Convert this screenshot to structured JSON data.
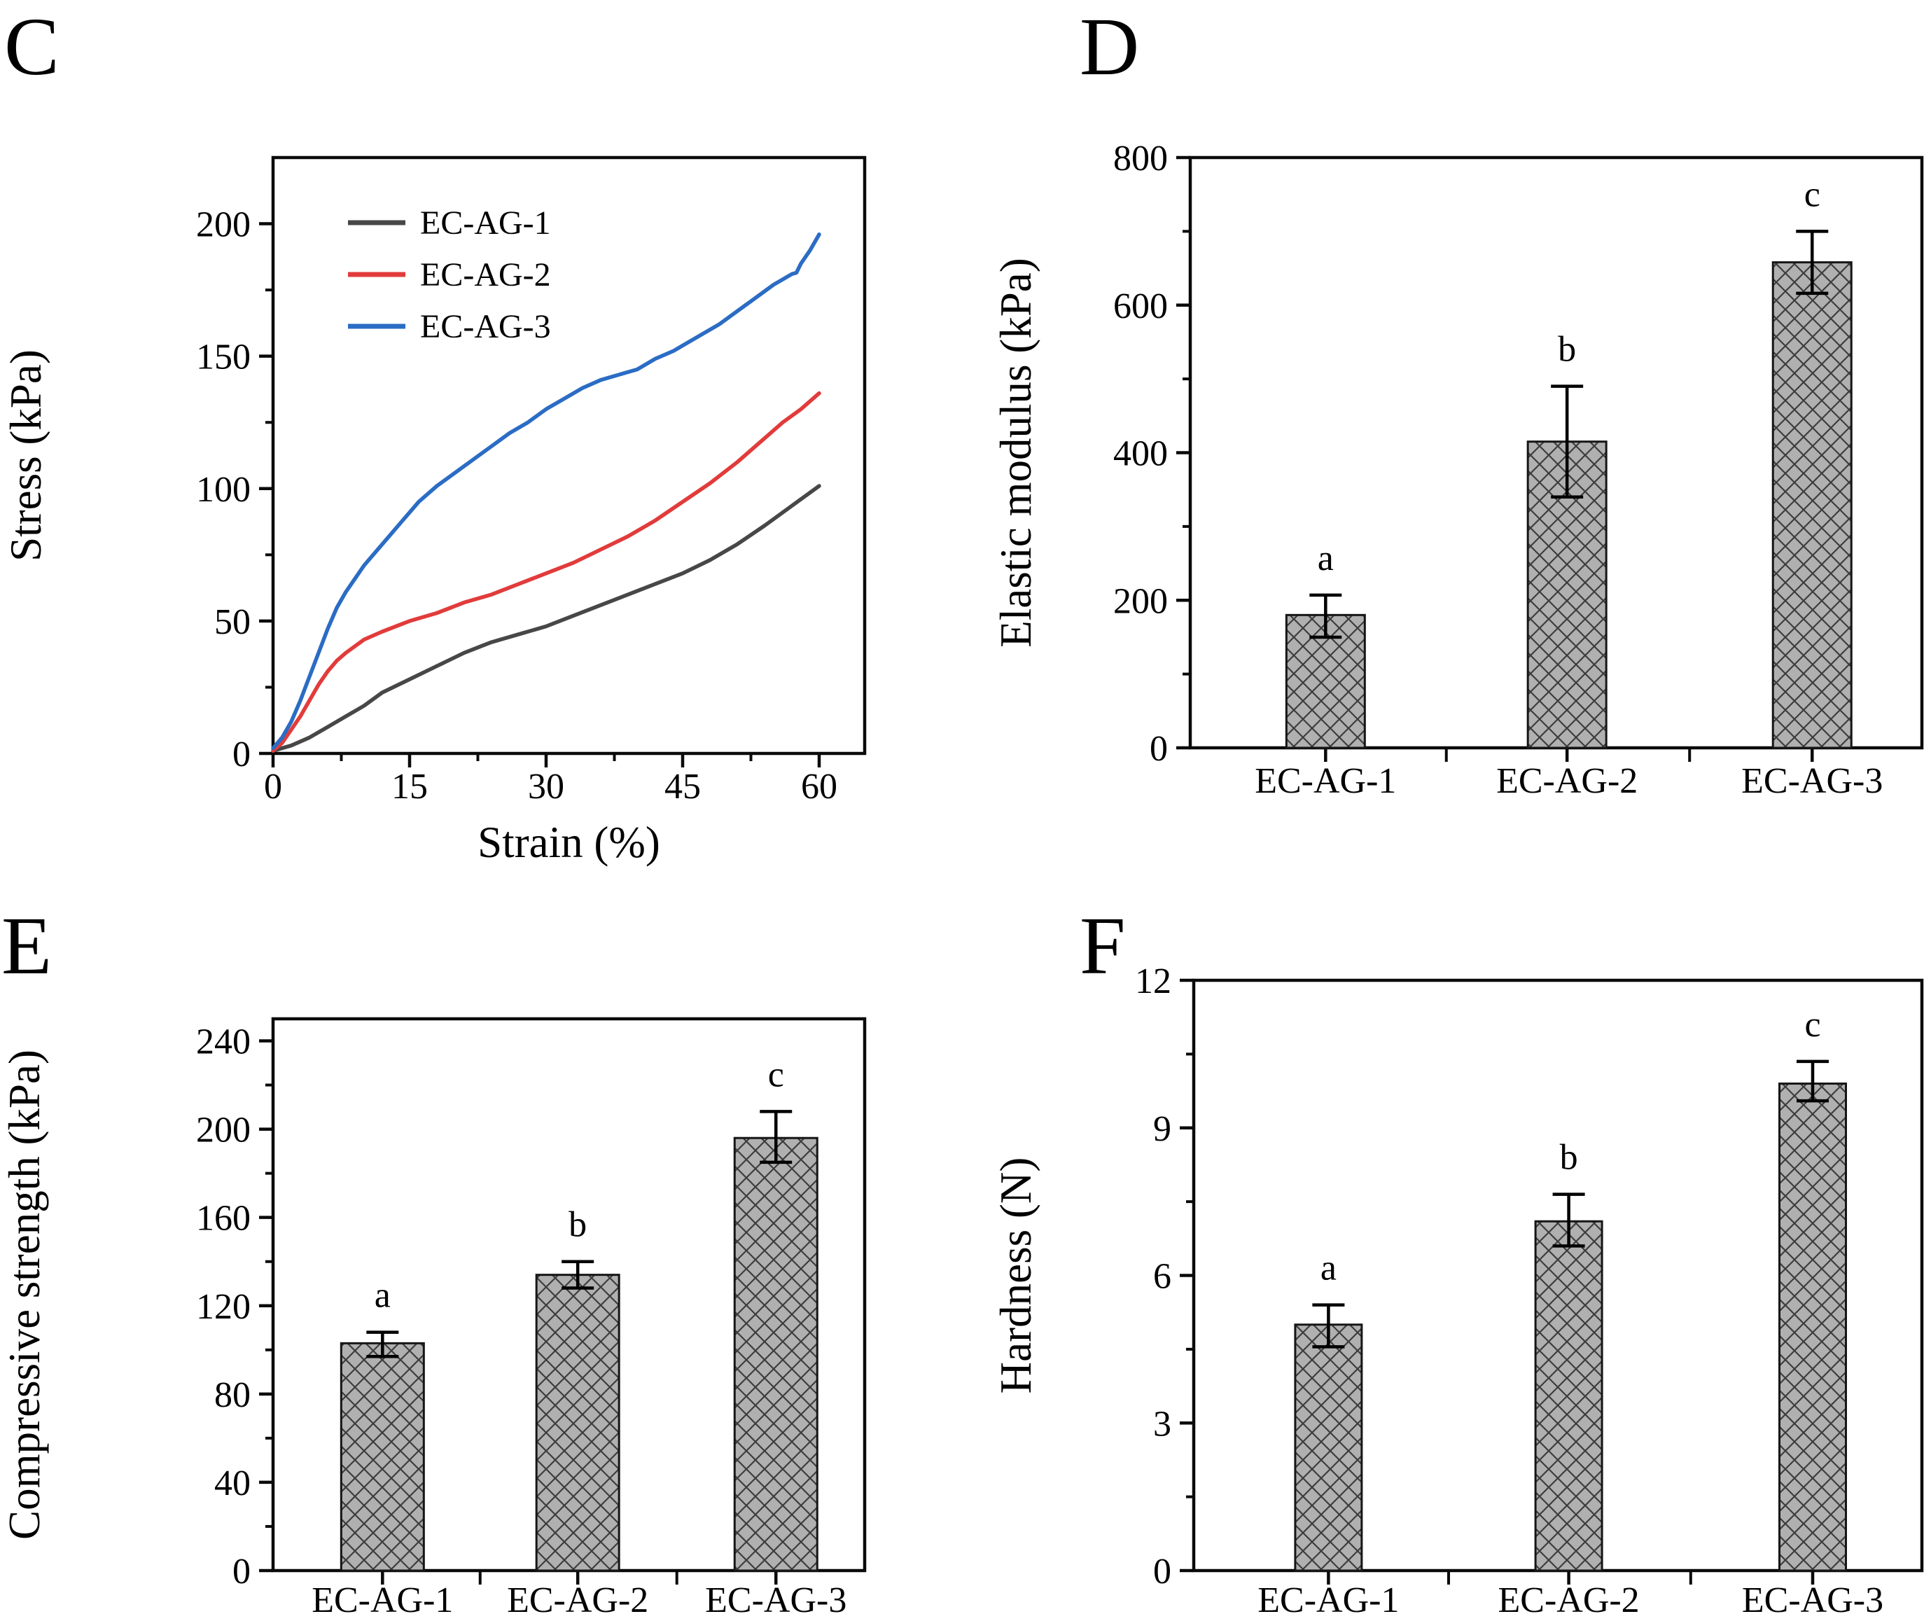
{
  "figure": {
    "background": "#ffffff",
    "text_color": "#000000",
    "axis_color": "#0a0a0a",
    "bar_fill": "#b0b0b0",
    "bar_hatch_color": "#3d3d3d",
    "panel_letters": [
      "C",
      "D",
      "E",
      "F"
    ]
  },
  "chart_data": [
    {
      "id": "C",
      "panel_letter": "C",
      "type": "line",
      "xlabel": "Strain (%)",
      "ylabel": "Stress (kPa)",
      "xlim": [
        0,
        65
      ],
      "ylim": [
        0,
        225
      ],
      "x_major_ticks": [
        0,
        15,
        30,
        45,
        60
      ],
      "x_minor_ticks": [
        7.5,
        22.5,
        37.5,
        52.5
      ],
      "y_major_ticks": [
        0,
        50,
        100,
        150,
        200
      ],
      "y_minor_ticks": [
        25,
        75,
        125,
        175
      ],
      "grid": false,
      "legend_position": "top-left",
      "series": [
        {
          "name": "EC-AG-1",
          "color": "#474747",
          "points": [
            [
              0,
              1
            ],
            [
              2,
              3
            ],
            [
              4,
              6
            ],
            [
              6,
              10
            ],
            [
              8,
              14
            ],
            [
              10,
              18
            ],
            [
              12,
              23
            ],
            [
              15,
              28
            ],
            [
              18,
              33
            ],
            [
              21,
              38
            ],
            [
              24,
              42
            ],
            [
              27,
              45
            ],
            [
              30,
              48
            ],
            [
              33,
              52
            ],
            [
              36,
              56
            ],
            [
              39,
              60
            ],
            [
              42,
              64
            ],
            [
              45,
              68
            ],
            [
              48,
              73
            ],
            [
              51,
              79
            ],
            [
              54,
              86
            ],
            [
              56,
              91
            ],
            [
              58,
              96
            ],
            [
              60,
              101
            ]
          ]
        },
        {
          "name": "EC-AG-2",
          "color": "#e23b3b",
          "points": [
            [
              0,
              1
            ],
            [
              1,
              4
            ],
            [
              2,
              9
            ],
            [
              3,
              14
            ],
            [
              4,
              20
            ],
            [
              5,
              26
            ],
            [
              6,
              31
            ],
            [
              7,
              35
            ],
            [
              8,
              38
            ],
            [
              10,
              43
            ],
            [
              12,
              46
            ],
            [
              15,
              50
            ],
            [
              18,
              53
            ],
            [
              21,
              57
            ],
            [
              24,
              60
            ],
            [
              27,
              64
            ],
            [
              30,
              68
            ],
            [
              33,
              72
            ],
            [
              36,
              77
            ],
            [
              39,
              82
            ],
            [
              42,
              88
            ],
            [
              45,
              95
            ],
            [
              48,
              102
            ],
            [
              51,
              110
            ],
            [
              54,
              119
            ],
            [
              56,
              125
            ],
            [
              58,
              130
            ],
            [
              60,
              136
            ]
          ]
        },
        {
          "name": "EC-AG-3",
          "color": "#2b6cc4",
          "points": [
            [
              0,
              2
            ],
            [
              1,
              6
            ],
            [
              2,
              12
            ],
            [
              3,
              20
            ],
            [
              4,
              29
            ],
            [
              5,
              38
            ],
            [
              6,
              47
            ],
            [
              7,
              55
            ],
            [
              8,
              61
            ],
            [
              9,
              66
            ],
            [
              10,
              71
            ],
            [
              11,
              75
            ],
            [
              12,
              79
            ],
            [
              13,
              83
            ],
            [
              14,
              87
            ],
            [
              15,
              91
            ],
            [
              16,
              95
            ],
            [
              17,
              98
            ],
            [
              18,
              101
            ],
            [
              20,
              106
            ],
            [
              22,
              111
            ],
            [
              24,
              116
            ],
            [
              26,
              121
            ],
            [
              28,
              125
            ],
            [
              30,
              130
            ],
            [
              32,
              134
            ],
            [
              34,
              138
            ],
            [
              36,
              141
            ],
            [
              37,
              142
            ],
            [
              38,
              143
            ],
            [
              40,
              145
            ],
            [
              42,
              149
            ],
            [
              44,
              152
            ],
            [
              45,
              154
            ],
            [
              47,
              158
            ],
            [
              49,
              162
            ],
            [
              51,
              167
            ],
            [
              53,
              172
            ],
            [
              55,
              177
            ],
            [
              56,
              179
            ],
            [
              57,
              181
            ],
            [
              57.5,
              181.5
            ],
            [
              58,
              185
            ],
            [
              59,
              190
            ],
            [
              60,
              196
            ]
          ]
        }
      ]
    },
    {
      "id": "D",
      "panel_letter": "D",
      "type": "bar",
      "ylabel": "Elastic modulus (kPa)",
      "categories": [
        "EC-AG-1",
        "EC-AG-2",
        "EC-AG-3"
      ],
      "values": [
        180,
        415,
        658
      ],
      "error_low": [
        150,
        340,
        616
      ],
      "error_high": [
        207,
        490,
        700
      ],
      "sig_letters": [
        "a",
        "b",
        "c"
      ],
      "ylim": [
        0,
        800
      ],
      "y_major_ticks": [
        0,
        200,
        400,
        600,
        800
      ],
      "y_minor_ticks": [
        100,
        300,
        500,
        700
      ],
      "grid": false
    },
    {
      "id": "E",
      "panel_letter": "E",
      "type": "bar",
      "ylabel": "Compressive strength (kPa)",
      "categories": [
        "EC-AG-1",
        "EC-AG-2",
        "EC-AG-3"
      ],
      "values": [
        103,
        134,
        196
      ],
      "error_low": [
        97,
        128,
        185
      ],
      "error_high": [
        108,
        140,
        208
      ],
      "sig_letters": [
        "a",
        "b",
        "c"
      ],
      "ylim": [
        0,
        250
      ],
      "y_major_ticks": [
        0,
        40,
        80,
        120,
        160,
        200,
        240
      ],
      "y_minor_ticks": [
        20,
        60,
        100,
        140,
        180,
        220
      ],
      "grid": false
    },
    {
      "id": "F",
      "panel_letter": "F",
      "type": "bar",
      "ylabel": "Hardness (N)",
      "categories": [
        "EC-AG-1",
        "EC-AG-2",
        "EC-AG-3"
      ],
      "values": [
        5.0,
        7.1,
        9.9
      ],
      "error_low": [
        4.55,
        6.6,
        9.55
      ],
      "error_high": [
        5.4,
        7.65,
        10.35
      ],
      "sig_letters": [
        "a",
        "b",
        "c"
      ],
      "ylim": [
        0,
        12
      ],
      "y_major_ticks": [
        0,
        3,
        6,
        9,
        12
      ],
      "y_minor_ticks": [
        1.5,
        4.5,
        7.5,
        10.5
      ],
      "grid": false
    }
  ]
}
